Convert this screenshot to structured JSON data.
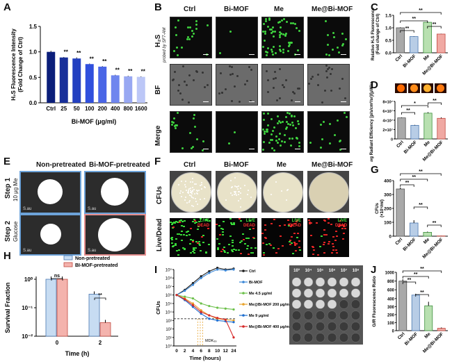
{
  "panels": {
    "A": "A",
    "B": "B",
    "C": "C",
    "D": "D",
    "E": "E",
    "F": "F",
    "G": "G",
    "H": "H",
    "I": "I",
    "J": "J"
  },
  "chart_data": [
    {
      "id": "A",
      "type": "bar",
      "categories": [
        "Ctrl",
        "25",
        "50",
        "100",
        "200",
        "400",
        "800",
        "1600"
      ],
      "values": [
        1.0,
        0.89,
        0.87,
        0.76,
        0.71,
        0.54,
        0.52,
        0.51
      ],
      "errors": [
        0.02,
        0.01,
        0.02,
        0.01,
        0.01,
        0.01,
        0.01,
        0.01
      ],
      "sig": [
        "",
        "**",
        "**",
        "**",
        "**",
        "**",
        "**",
        "**"
      ],
      "colors": [
        "#0b1e7a",
        "#182f9a",
        "#2340c0",
        "#3050dd",
        "#4a66e6",
        "#6f86ee",
        "#98a8f2",
        "#bcc7f7"
      ],
      "ylabel": "H₂S Fluorescence Intensity (Fold Change of Ctrl)",
      "xlabel": "Bi-MOF (μg/ml)",
      "ylim": [
        0,
        1.5
      ],
      "yticks": [
        "0.0",
        "0.5",
        "1.0",
        "1.5"
      ]
    },
    {
      "id": "C",
      "type": "bar",
      "categories": [
        "Ctrl",
        "Bi-MOF",
        "Me",
        "Me@Bi-MOF"
      ],
      "values": [
        1.0,
        0.65,
        1.22,
        0.75
      ],
      "errors": [
        0.02,
        0.01,
        0.02,
        0.01
      ],
      "ylabel": "Relative H₂S Fluorescence (Fold change of Ctrl)",
      "ylim": [
        0,
        1.5
      ],
      "yticks": [
        "0.0",
        "0.5",
        "1.0",
        "1.5"
      ],
      "sig": [
        "**",
        "**",
        "**",
        "**"
      ]
    },
    {
      "id": "D",
      "type": "bar",
      "categories": [
        "Ctrl",
        "Bi-MOF",
        "Me",
        "Me@Bi-MOF"
      ],
      "values": [
        45000000.0,
        29000000.0,
        55000000.0,
        44000000.0
      ],
      "errors": [
        1000000.0,
        1000000.0,
        2000000.0,
        2000000.0
      ],
      "ylabel": "Avg Radiant Efficiency [p/s/cm²/sr]/[μW/cm²]",
      "ylim": [
        0,
        80000000.0
      ],
      "yticks": [
        "0",
        "2×10⁷",
        "4×10⁷",
        "6×10⁷",
        "8×10⁷"
      ],
      "sig": [
        "**",
        "*",
        "**"
      ]
    },
    {
      "id": "G",
      "type": "bar",
      "categories": [
        "Ctrl",
        "Bi-MOF",
        "Me",
        "Me@Bi-MOF"
      ],
      "values": [
        340,
        95,
        28,
        2
      ],
      "errors": [
        10,
        20,
        5,
        1
      ],
      "ylabel": "CFUs (×10⁵/ml)",
      "ylim": [
        0,
        400
      ],
      "yticks": [
        "0",
        "100",
        "200",
        "300",
        "400"
      ],
      "sig": [
        "**",
        "**",
        "**",
        "**",
        "**"
      ]
    },
    {
      "id": "H",
      "type": "bar",
      "categories": [
        "0",
        "2"
      ],
      "xlabel": "Time (h)",
      "ylabel": "Survival Fraction",
      "series": [
        {
          "name": "Non-pretreated",
          "values": [
            1.0,
            0.3
          ]
        },
        {
          "name": "BI-MOF-pretreated",
          "values": [
            1.0,
            0.03
          ]
        }
      ],
      "yticks": [
        "10⁻²",
        "10⁻¹",
        "10⁰"
      ],
      "sig": [
        "ns",
        "**"
      ]
    },
    {
      "id": "I",
      "type": "line",
      "xlabel": "Time (hours)",
      "ylabel": "CFUs",
      "x": [
        0,
        2,
        4,
        6,
        8,
        10,
        12,
        24
      ],
      "xticks": [
        "0",
        "2",
        "4",
        "6",
        "8",
        "10",
        "12",
        "24"
      ],
      "yticks": [
        "10⁰",
        "10¹",
        "10²",
        "10³",
        "10⁴",
        "10⁵",
        "10⁶",
        "10⁷",
        "10⁸",
        "10⁹"
      ],
      "series": [
        {
          "name": "Ctrl",
          "color": "#1a1a1a",
          "values": [
            6,
            6.6,
            7.4,
            8.2,
            8.8,
            9.2,
            9.0,
            9.1
          ]
        },
        {
          "name": "Bi-MOF",
          "color": "#3a86d6",
          "values": [
            6,
            6.5,
            7.2,
            8.0,
            8.6,
            9.0,
            8.9,
            9.0
          ]
        },
        {
          "name": "Me 4.5 μg/ml",
          "color": "#6cc04a",
          "values": [
            6,
            5.8,
            5.6,
            5.0,
            4.7,
            4.5,
            4.4,
            4.3
          ]
        },
        {
          "name": "Me@Bi-MOF 200 μg/ml",
          "color": "#e8a22a",
          "values": [
            6,
            5.6,
            5.0,
            4.2,
            3.6,
            3.2,
            3.1,
            3.0
          ]
        },
        {
          "name": "Me 9 μg/ml",
          "color": "#1f6fd0",
          "values": [
            6,
            5.4,
            4.6,
            3.8,
            3.2,
            3.0,
            2.9,
            2.8
          ]
        },
        {
          "name": "Me@Bi-MOF 400 μg/ml",
          "color": "#d62a2a",
          "values": [
            6,
            5.5,
            4.8,
            4.0,
            3.6,
            3.3,
            3.1,
            1.0
          ]
        }
      ],
      "mdk_label": "MDK₉₉",
      "dilutions": [
        "10³",
        "10⁴",
        "10⁵",
        "10⁶",
        "10⁷",
        "10⁸"
      ]
    },
    {
      "id": "J",
      "type": "bar",
      "categories": [
        "Ctrl",
        "Bi-MOF",
        "Me",
        "Me@Bi-MOF"
      ],
      "values": [
        800,
        480,
        310,
        30
      ],
      "errors": [
        40,
        30,
        50,
        10
      ],
      "ylabel": "G/R Fluorescence Ratio",
      "ylim": [
        0,
        1000
      ],
      "yticks": [
        "0",
        "100",
        "200",
        "300",
        "400",
        "600",
        "800",
        "1000"
      ],
      "sig": [
        "**",
        "**",
        "**",
        "**"
      ]
    }
  ],
  "panel_B": {
    "cols": [
      "Ctrl",
      "Bi-MOF",
      "Me",
      "Me@Bi-MOF"
    ],
    "rows": [
      "H₂S",
      "BF",
      "Merge"
    ],
    "probe": "probed by SF7-AM"
  },
  "panel_E": {
    "cols": [
      "Non-pretreated",
      "Bi-MOF-pretreated"
    ],
    "rows": [
      {
        "title": "Step 1",
        "sub": "10 μg Me"
      },
      {
        "title": "Step 2",
        "sub": "Glucose"
      }
    ],
    "tag": "S.au"
  },
  "panel_F": {
    "cols": [
      "Ctrl",
      "Bi-MOF",
      "Me",
      "Me@Bi-MOF"
    ],
    "rows": [
      "CFUs",
      "Live/Dead"
    ],
    "live": "LIVE",
    "dead": "DEAD"
  }
}
